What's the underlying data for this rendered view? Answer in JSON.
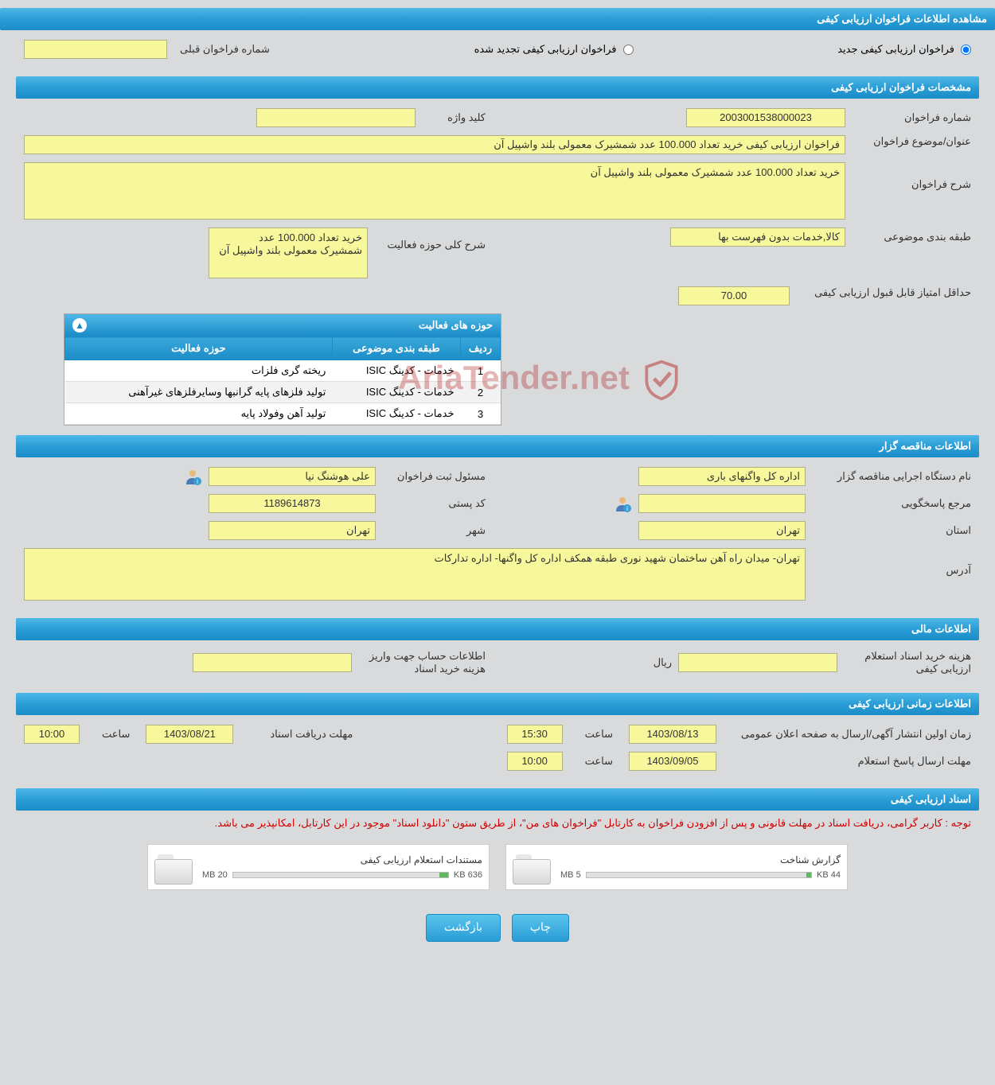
{
  "header_main": "مشاهده اطلاعات فراخوان ارزیابی کیفی",
  "top_row": {
    "radio_new": "فراخوان ارزیابی کیفی جدید",
    "radio_renewed": "فراخوان ارزیابی کیفی تجدید شده",
    "prev_call_label": "شماره فراخوان قبلی",
    "prev_call_value": ""
  },
  "section_specs": {
    "title": "مشخصات فراخوان ارزیابی کیفی",
    "call_number_label": "شماره فراخوان",
    "call_number_value": "2003001538000023",
    "keyword_label": "کلید واژه",
    "keyword_value": "",
    "subject_label": "عنوان/موضوع فراخوان",
    "subject_value": "فراخوان ارزیابی کیفی خرید تعداد 100.000 عدد شمشیرک معمولی بلند واشپیل آن",
    "desc_label": "شرح فراخوان",
    "desc_value": "خرید تعداد 100.000 عدد شمشیرک معمولی بلند واشپیل آن",
    "category_label": "طبقه بندی موضوعی",
    "category_value": "کالا,خدمات بدون فهرست بها",
    "scope_desc_label": "شرح کلی حوزه فعالیت",
    "scope_desc_value": "خرید تعداد 100.000 عدد شمشیرک معمولی بلند واشپیل آن",
    "min_score_label": "حداقل امتیاز قابل قبول ارزیابی کیفی",
    "min_score_value": "70.00",
    "activity_table": {
      "header": "حوزه های فعالیت",
      "col_row": "ردیف",
      "col_category": "طبقه بندی موضوعی",
      "col_scope": "حوزه فعالیت",
      "rows": [
        {
          "n": "1",
          "cat": "خدمات - کدینگ ISIC",
          "scope": "ریخته گری فلزات"
        },
        {
          "n": "2",
          "cat": "خدمات - کدینگ ISIC",
          "scope": "تولید فلزهای پایه گرانبها وسایرفلزهای غیرآهنی"
        },
        {
          "n": "3",
          "cat": "خدمات - کدینگ ISIC",
          "scope": "تولید آهن وفولاد پایه"
        }
      ]
    }
  },
  "section_tenderer": {
    "title": "اطلاعات مناقصه گزار",
    "exec_label": "نام دستگاه اجرایی مناقصه گزار",
    "exec_value": "اداره کل واگنهای باری",
    "registrar_label": "مسئول ثبت فراخوان",
    "registrar_value": "علی هوشنگ نیا",
    "responder_label": "مرجع پاسخگویی",
    "responder_value": "",
    "postcode_label": "کد پستی",
    "postcode_value": "1189614873",
    "province_label": "استان",
    "province_value": "تهران",
    "city_label": "شهر",
    "city_value": "تهران",
    "address_label": "آدرس",
    "address_value": "تهران- میدان راه آهن ساختمان شهید نوری طبقه همکف اداره کل واگنها- اداره تدارکات"
  },
  "section_financial": {
    "title": "اطلاعات مالی",
    "doc_cost_label": "هزینه خرید اسناد استعلام ارزیابی کیفی",
    "doc_cost_value": "",
    "currency": "ریال",
    "account_label": "اطلاعات حساب جهت واریز هزینه خرید اسناد",
    "account_value": ""
  },
  "section_timing": {
    "title": "اطلاعات زمانی ارزیابی کیفی",
    "publish_label": "زمان اولین انتشار آگهی/ارسال به صفحه اعلان عمومی",
    "publish_date": "1403/08/13",
    "publish_time_label": "ساعت",
    "publish_time": "15:30",
    "receive_label": "مهلت دریافت اسناد",
    "receive_date": "1403/08/21",
    "receive_time_label": "ساعت",
    "receive_time": "10:00",
    "response_label": "مهلت ارسال پاسخ استعلام",
    "response_date": "1403/09/05",
    "response_time_label": "ساعت",
    "response_time": "10:00"
  },
  "section_docs": {
    "title": "اسناد ارزیابی کیفی",
    "note": "توجه : کاربر گرامی، دریافت اسناد در مهلت قانونی و پس از افزودن فراخوان به کارتابل \"فراخوان های من\"، از طریق ستون \"دانلود اسناد\" موجود در این کارتابل، امکانپذیر می باشد.",
    "file1_title": "گزارش شناخت",
    "file1_size": "44 KB",
    "file1_max": "5 MB",
    "file2_title": "مستندات استعلام ارزیابی کیفی",
    "file2_size": "636 KB",
    "file2_max": "20 MB"
  },
  "buttons": {
    "print": "چاپ",
    "back": "بازگشت"
  },
  "watermark": "AriaTender.net",
  "file_bar": {
    "fill1_pct": 2,
    "fill2_pct": 4,
    "bar_bg": "#e0e0e0",
    "bar_fill": "#5fb85f"
  }
}
